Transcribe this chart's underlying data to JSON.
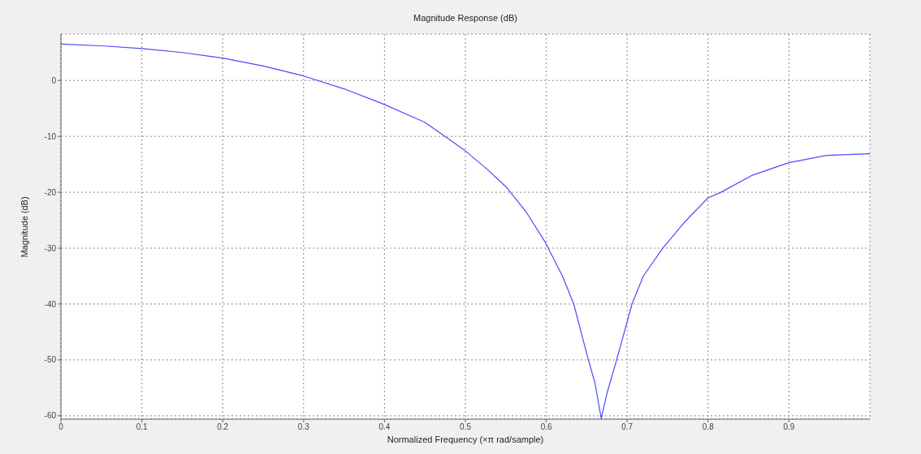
{
  "chart_data": {
    "type": "line",
    "title": "Magnitude Response (dB)",
    "xlabel": "Normalized Frequency (×π rad/sample)",
    "ylabel": "Magnitude (dB)",
    "xlim": [
      0,
      1
    ],
    "ylim": [
      -60.6,
      8.3
    ],
    "xticks": [
      0,
      0.1,
      0.2,
      0.3,
      0.4,
      0.5,
      0.6,
      0.7,
      0.8,
      0.9
    ],
    "yticks": [
      -60,
      -50,
      -40,
      -30,
      -20,
      -10,
      0
    ],
    "grid": true,
    "series": [
      {
        "color": "#4a4aff",
        "x": [
          0,
          0.05,
          0.1,
          0.15,
          0.2,
          0.25,
          0.3,
          0.35,
          0.4,
          0.45,
          0.467,
          0.5,
          0.527,
          0.55,
          0.575,
          0.599,
          0.62,
          0.634,
          0.652,
          0.66,
          0.668,
          0.675,
          0.687,
          0.706,
          0.72,
          0.744,
          0.77,
          0.8,
          0.816,
          0.854,
          0.9,
          0.947,
          1
        ],
        "values": [
          6.5,
          6.2,
          5.7,
          5.0,
          4.0,
          2.6,
          0.8,
          -1.5,
          -4.3,
          -7.5,
          -9.2,
          -12.6,
          -15.9,
          -19,
          -23.5,
          -29,
          -35,
          -40,
          -50,
          -54,
          -60.5,
          -56,
          -50,
          -40,
          -35,
          -30,
          -25.5,
          -21,
          -20,
          -17,
          -14.7,
          -13.4,
          -13.1
        ]
      }
    ]
  }
}
